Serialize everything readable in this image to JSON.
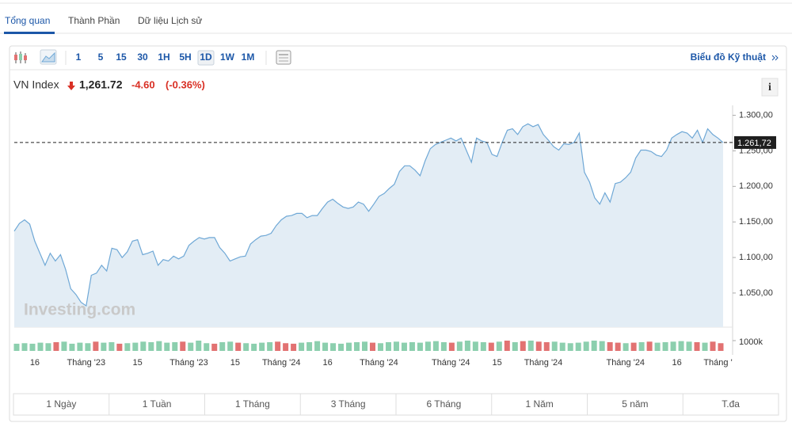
{
  "tabs": [
    "Tổng quan",
    "Thành Phần",
    "Dữ liệu Lịch sử"
  ],
  "active_tab": 0,
  "intervals": [
    "1",
    "5",
    "15",
    "30",
    "1H",
    "5H",
    "1D",
    "1W",
    "1M"
  ],
  "active_interval": 6,
  "technical_link": "Biểu đồ Kỹ thuật",
  "info_icon": "i",
  "ranges": [
    "1 Ngày",
    "1 Tuần",
    "1 Tháng",
    "3 Tháng",
    "6 Tháng",
    "1 Năm",
    "5 năm",
    "T.đa"
  ],
  "chart_data": {
    "type": "area",
    "title": "VN Index",
    "last": {
      "value": 1261.72,
      "label": "1,261.72"
    },
    "change": {
      "value": -4.6,
      "label": "-4.60"
    },
    "change_pct": {
      "value": -0.36,
      "label": "(-0.36%)"
    },
    "watermark": "Investing.com",
    "color": "#6fa8d6",
    "fill": "#e3edf5",
    "categories": [
      null,
      null,
      null,
      null,
      "16",
      null,
      null,
      null,
      null,
      null,
      null,
      null,
      null,
      null,
      "Tháng '23",
      null,
      null,
      null,
      null,
      null,
      null,
      null,
      null,
      null,
      "15",
      null,
      null,
      null,
      null,
      null,
      null,
      null,
      null,
      null,
      "Tháng '23",
      null,
      null,
      null,
      null,
      null,
      null,
      null,
      null,
      "15",
      null,
      null,
      null,
      null,
      null,
      null,
      null,
      null,
      "Tháng '24",
      null,
      null,
      null,
      null,
      null,
      null,
      null,
      null,
      "16",
      null,
      null,
      null,
      null,
      null,
      null,
      null,
      null,
      null,
      "Tháng '24",
      null,
      null,
      null,
      null,
      null,
      null,
      null,
      null,
      null,
      null,
      null,
      null,
      null,
      "Tháng '24",
      null,
      null,
      null,
      null,
      null,
      null,
      null,
      null,
      "15",
      null,
      null,
      null,
      null,
      null,
      null,
      null,
      null,
      "Tháng '24",
      null,
      null,
      null,
      null,
      null,
      null,
      null,
      null,
      null,
      null,
      null,
      null,
      null,
      null,
      null,
      "Tháng '24",
      null,
      null,
      null,
      null,
      null,
      null,
      null,
      null,
      null,
      "16",
      null,
      null,
      null,
      null,
      null,
      null,
      null,
      "Tháng '",
      null
    ],
    "values": [
      1137,
      1148,
      1153,
      1147,
      1123,
      1106,
      1089,
      1106,
      1095,
      1104,
      1083,
      1056,
      1048,
      1037,
      1032,
      1075,
      1078,
      1089,
      1081,
      1113,
      1111,
      1100,
      1108,
      1123,
      1125,
      1104,
      1106,
      1109,
      1089,
      1097,
      1095,
      1102,
      1098,
      1102,
      1117,
      1123,
      1128,
      1126,
      1128,
      1128,
      1114,
      1106,
      1095,
      1098,
      1101,
      1102,
      1119,
      1125,
      1130,
      1131,
      1134,
      1145,
      1153,
      1158,
      1159,
      1162,
      1162,
      1156,
      1159,
      1159,
      1169,
      1178,
      1182,
      1176,
      1171,
      1169,
      1171,
      1178,
      1175,
      1165,
      1175,
      1186,
      1190,
      1197,
      1203,
      1221,
      1229,
      1229,
      1223,
      1215,
      1236,
      1253,
      1259,
      1262,
      1265,
      1268,
      1264,
      1268,
      1251,
      1234,
      1268,
      1264,
      1262,
      1245,
      1242,
      1262,
      1279,
      1281,
      1273,
      1284,
      1288,
      1284,
      1287,
      1273,
      1265,
      1256,
      1251,
      1260,
      1259,
      1262,
      1275,
      1220,
      1206,
      1184,
      1175,
      1191,
      1178,
      1204,
      1206,
      1212,
      1220,
      1240,
      1251,
      1251,
      1249,
      1244,
      1242,
      1251,
      1268,
      1273,
      1277,
      1275,
      1268,
      1279,
      1262,
      1281,
      1273,
      1268,
      1261.72
    ],
    "ylim": [
      1002,
      1314
    ],
    "yticks": [
      {
        "value": 1050,
        "label": "1.050,00"
      },
      {
        "value": 1100,
        "label": "1.100,00"
      },
      {
        "value": 1150,
        "label": "1.150,00"
      },
      {
        "value": 1200,
        "label": "1.200,00"
      },
      {
        "value": 1250,
        "label": "1.250,00"
      },
      {
        "value": 1300,
        "label": "1.300,00"
      }
    ],
    "price_line": {
      "value": 1261.72,
      "label": "1.261,72"
    },
    "volume": {
      "values": [
        700000,
        750000,
        700000,
        800000,
        750000,
        850000,
        900000,
        700000,
        800000,
        750000,
        900000,
        800000,
        850000,
        700000,
        750000,
        800000,
        900000,
        850000,
        950000,
        800000,
        850000,
        900000,
        800000,
        1000000,
        750000,
        700000,
        850000,
        900000,
        800000,
        750000,
        700000,
        800000,
        850000,
        900000,
        750000,
        700000,
        800000,
        850000,
        950000,
        800000,
        750000,
        700000,
        800000,
        850000,
        900000,
        800000,
        750000,
        850000,
        900000,
        800000,
        850000,
        800000,
        900000,
        950000,
        850000,
        800000,
        900000,
        1000000,
        900000,
        850000,
        800000,
        900000,
        1000000,
        850000,
        950000,
        1000000,
        900000,
        850000,
        900000,
        800000,
        750000,
        800000,
        900000,
        1000000,
        950000,
        850000,
        800000,
        750000,
        800000,
        850000,
        900000,
        800000,
        850000,
        900000,
        950000,
        900000,
        850000,
        800000,
        900000,
        750000
      ],
      "up": [
        true,
        true,
        true,
        true,
        true,
        false,
        true,
        true,
        true,
        true,
        false,
        true,
        true,
        false,
        true,
        true,
        true,
        true,
        true,
        true,
        true,
        false,
        true,
        true,
        true,
        false,
        true,
        true,
        false,
        true,
        true,
        true,
        true,
        false,
        false,
        false,
        true,
        true,
        true,
        true,
        true,
        true,
        true,
        true,
        true,
        false,
        true,
        true,
        true,
        true,
        true,
        true,
        true,
        true,
        true,
        false,
        true,
        true,
        true,
        true,
        false,
        true,
        false,
        true,
        false,
        true,
        false,
        false,
        true,
        true,
        true,
        true,
        true,
        true,
        true,
        false,
        false,
        true,
        false,
        true,
        false,
        true,
        true,
        true,
        true,
        true,
        false,
        true,
        false,
        false
      ],
      "up_color": "#8ccfae",
      "down_color": "#e27272",
      "ylim": [
        0,
        1000000
      ],
      "yticks": [
        {
          "value": 1000000,
          "label": "1000k"
        }
      ]
    }
  }
}
